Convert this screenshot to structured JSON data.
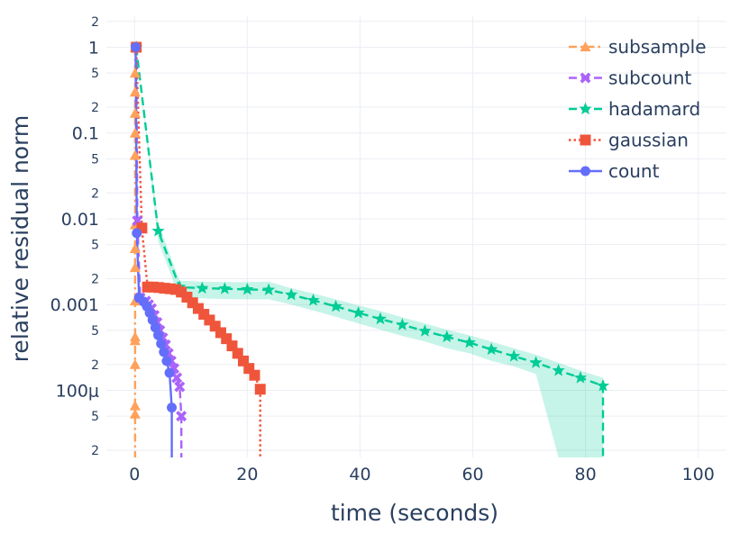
{
  "chart_data": {
    "type": "line",
    "xlabel": "time (seconds)",
    "ylabel": "relative residual norm",
    "y_scale": "log",
    "xlim": [
      -5,
      105
    ],
    "ylim": [
      1.65e-05,
      2.3
    ],
    "x_ticks": [
      0,
      20,
      40,
      60,
      80,
      100
    ],
    "x_tick_labels": [
      "0",
      "20",
      "40",
      "60",
      "80",
      "100"
    ],
    "y_major_ticks": [
      1,
      0.1,
      0.01,
      0.001,
      0.0001
    ],
    "y_major_labels": [
      "1",
      "0.1",
      "0.01",
      "0.001",
      "100μ"
    ],
    "y_minor_ticks": [
      2,
      0.5,
      0.2,
      0.05,
      0.02,
      0.005,
      0.002,
      0.0005,
      0.0002,
      5e-05,
      2e-05
    ],
    "y_minor_labels": [
      "2",
      "5",
      "2",
      "5",
      "2",
      "5",
      "2",
      "5",
      "2",
      "5",
      "2"
    ],
    "grid": true,
    "legend_position": "top-right",
    "series": [
      {
        "name": "subsample",
        "color": "#FFA15A",
        "dash": "dashdot",
        "marker": "triangle-up",
        "x": [
          0.1,
          0.1,
          0.1,
          0.1,
          0.1,
          0.1,
          0.1,
          0.1,
          0.1,
          0.1,
          0.1,
          0.1,
          0.1,
          0.1,
          0.1,
          0.1
        ],
        "y": [
          1,
          0.5,
          0.3,
          0.17,
          0.1,
          0.055,
          0.0085,
          0.0045,
          0.0027,
          0.0011,
          0.00042,
          0.00038,
          0.0002,
          6.6e-05,
          5.3e-05,
          1.65e-05
        ],
        "band": null
      },
      {
        "name": "subcount",
        "color": "#AB63FA",
        "dash": "dash",
        "marker": "x",
        "x": [
          0.3,
          0.5,
          1.0,
          2.0,
          2.5,
          3.0,
          3.5,
          4.0,
          4.5,
          5.0,
          5.5,
          6.0,
          6.5,
          7.0,
          7.5,
          8.0,
          8.3,
          8.3
        ],
        "y": [
          1,
          0.0095,
          0.0012,
          0.0011,
          0.001,
          0.0009,
          0.00075,
          0.00062,
          0.0005,
          0.00041,
          0.00034,
          0.00027,
          0.00022,
          0.00018,
          0.00014,
          0.00011,
          5e-05,
          1.65e-05
        ],
        "band": {
          "upper": [
            1,
            0.011,
            0.0014,
            0.00125,
            0.00115,
            0.00105,
            0.00088,
            0.00072,
            0.00058,
            0.00048,
            0.0004,
            0.00032,
            0.00026,
            0.00021,
            0.00017,
            0.00013,
            6e-05,
            1.65e-05
          ],
          "lower": [
            1,
            0.008,
            0.001,
            0.00095,
            0.00088,
            0.00078,
            0.00065,
            0.00053,
            0.00043,
            0.00035,
            0.00029,
            0.00023,
            0.00019,
            0.00015,
            0.00012,
            9.5e-05,
            1.65e-05,
            1.65e-05
          ]
        }
      },
      {
        "name": "hadamard",
        "color": "#00CC96",
        "dash": "dash",
        "marker": "star",
        "x": [
          0.3,
          4.2,
          8.0,
          12.0,
          16.0,
          20.0,
          23.8,
          27.8,
          31.7,
          35.7,
          39.7,
          43.6,
          47.5,
          51.5,
          55.4,
          59.4,
          63.3,
          67.3,
          71.2,
          75.2,
          79.1,
          83.1,
          83.1
        ],
        "y": [
          1,
          0.0072,
          0.0016,
          0.00155,
          0.00153,
          0.0015,
          0.00148,
          0.0013,
          0.00112,
          0.00095,
          0.0008,
          0.00068,
          0.00058,
          0.00049,
          0.00042,
          0.00036,
          0.0003,
          0.00025,
          0.00021,
          0.00017,
          0.00014,
          0.000113,
          1.65e-05
        ],
        "band": {
          "upper": [
            1,
            0.009,
            0.0019,
            0.00185,
            0.00183,
            0.00182,
            0.00185,
            0.00155,
            0.00135,
            0.00115,
            0.00098,
            0.00084,
            0.00071,
            0.0006,
            0.00051,
            0.00044,
            0.00037,
            0.00031,
            0.00026,
            0.00021,
            0.00017,
            0.00014,
            0.000118
          ],
          "lower": [
            1,
            0.0055,
            0.0012,
            0.00118,
            0.00116,
            0.00115,
            0.00115,
            0.001,
            0.00085,
            0.00072,
            0.0006,
            0.00051,
            0.00043,
            0.00037,
            0.00031,
            0.00027,
            0.00022,
            0.00019,
            0.000155,
            1.65e-05,
            1.65e-05,
            1.65e-05,
            1.65e-05
          ]
        }
      },
      {
        "name": "gaussian",
        "color": "#EF553B",
        "dash": "dot",
        "marker": "square",
        "x": [
          0.3,
          1.3,
          2.3,
          3.3,
          4.3,
          5.3,
          6.3,
          7.3,
          8.3,
          9.3,
          10.3,
          11.3,
          12.3,
          13.3,
          14.3,
          15.3,
          16.3,
          17.3,
          18.3,
          19.3,
          20.3,
          21.3,
          22.3,
          22.3
        ],
        "y": [
          1,
          0.0078,
          0.0016,
          0.0016,
          0.00158,
          0.00155,
          0.00153,
          0.0015,
          0.0014,
          0.00122,
          0.00105,
          0.0009,
          0.00077,
          0.00066,
          0.00056,
          0.00047,
          0.0004,
          0.00033,
          0.00027,
          0.00022,
          0.00018,
          0.00015,
          0.000103,
          1.65e-05
        ],
        "band": null
      },
      {
        "name": "count",
        "color": "#636EFA",
        "dash": "solid",
        "marker": "circle",
        "x": [
          0.2,
          0.4,
          0.8,
          1.6,
          2.2,
          2.7,
          3.2,
          3.7,
          4.2,
          4.7,
          5.2,
          5.7,
          6.2,
          6.6,
          6.6
        ],
        "y": [
          1,
          0.0068,
          0.0012,
          0.00108,
          0.00095,
          0.0008,
          0.00066,
          0.00054,
          0.00044,
          0.00035,
          0.00028,
          0.00022,
          0.00016,
          6.3e-05,
          1.65e-05
        ],
        "band": {
          "upper": [
            1,
            0.008,
            0.0014,
            0.00125,
            0.0011,
            0.00092,
            0.00076,
            0.00062,
            0.0005,
            0.0004,
            0.00032,
            0.00025,
            0.00018,
            7e-05,
            1.65e-05
          ],
          "lower": [
            1,
            0.0056,
            0.00102,
            0.00092,
            0.0008,
            0.00068,
            0.00056,
            0.00046,
            0.00038,
            0.0003,
            0.00024,
            0.00019,
            0.00014,
            1.65e-05,
            1.65e-05
          ]
        }
      }
    ]
  }
}
